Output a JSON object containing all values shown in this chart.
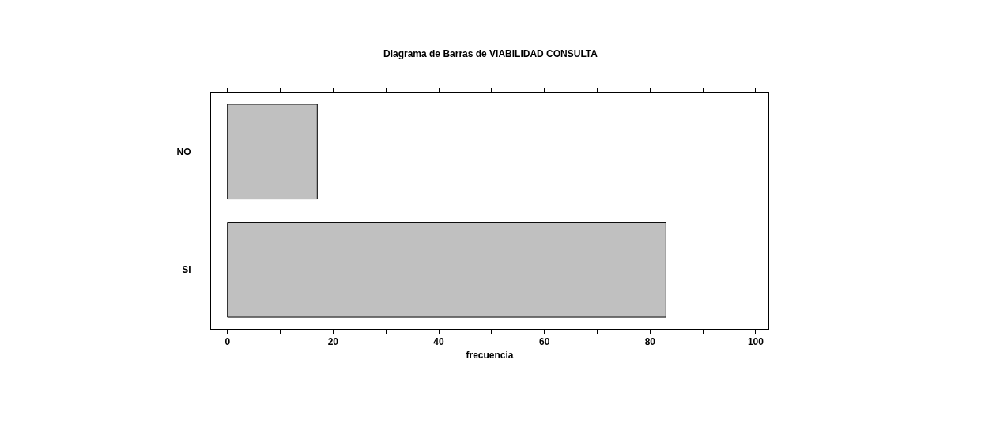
{
  "chart_data": {
    "type": "bar",
    "orientation": "horizontal",
    "title": "Diagrama de Barras de VIABILIDAD CONSULTA",
    "xlabel": "frecuencia",
    "categories": [
      "NO",
      "SI"
    ],
    "values": [
      17,
      83
    ],
    "color": "#c0c0c0",
    "xlim": [
      -3.1,
      102.4
    ],
    "xticks": [
      0,
      {
        "value": 10,
        "label": null
      },
      20,
      {
        "value": 30,
        "label": null
      },
      40,
      {
        "value": 50,
        "label": null
      },
      60,
      {
        "value": 70,
        "label": null
      },
      80,
      {
        "value": 90,
        "label": null
      },
      100
    ],
    "grid": false
  }
}
